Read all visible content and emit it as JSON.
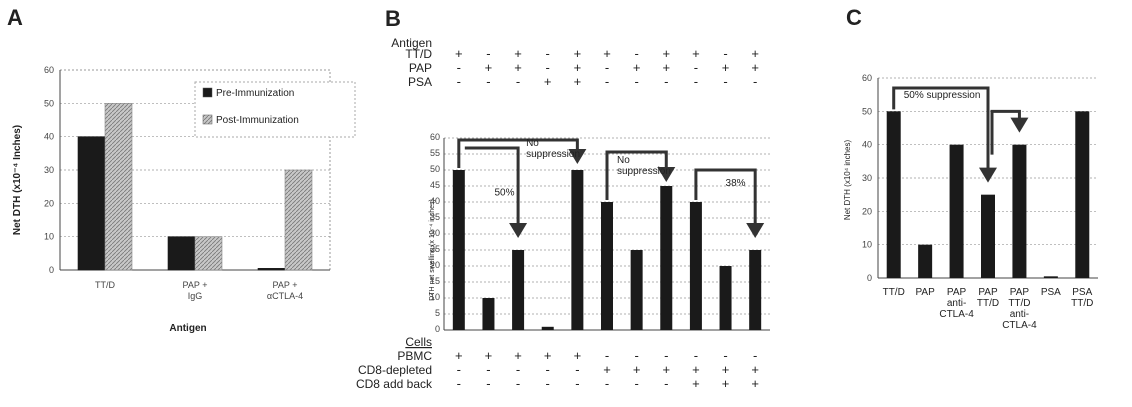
{
  "panels": {
    "a": {
      "letter": "A",
      "ylabel": "Net DTH (x10⁻⁴ Inches)",
      "xlabel": "Antigen"
    },
    "b": {
      "letter": "B",
      "ylabel": "DTH net swelling (x 10⁻⁴ inches)"
    },
    "c": {
      "letter": "C",
      "ylabel": "Net DTH (x10⁴ inches)"
    }
  },
  "colors": {
    "pre": "#1a1a1a",
    "post": "#c8c8c8",
    "bar": "#1a1a1a"
  },
  "chart_data": [
    {
      "type": "bar",
      "title": "",
      "xlabel": "Antigen",
      "ylabel": "Net DTH (x10⁻⁴ Inches)",
      "ylim": [
        0,
        60
      ],
      "yticks": [
        0,
        10,
        20,
        30,
        40,
        50,
        60
      ],
      "grid": true,
      "legend": "top-right",
      "categories": [
        [
          "TT/D"
        ],
        [
          "PAP +",
          "IgG"
        ],
        [
          "PAP +",
          "αCTLA-4"
        ]
      ],
      "series": [
        {
          "name": "Pre-Immunization",
          "values": [
            40,
            10,
            0.5
          ]
        },
        {
          "name": "Post-Immunization",
          "values": [
            50,
            10,
            30
          ]
        }
      ]
    },
    {
      "type": "bar",
      "title": "",
      "ylabel": "DTH net swelling (x 10⁻⁴ inches)",
      "ylim": [
        0,
        60
      ],
      "yticks": [
        0,
        5,
        10,
        15,
        20,
        25,
        30,
        35,
        40,
        45,
        50,
        55,
        60
      ],
      "grid": true,
      "values": [
        50,
        10,
        25,
        1,
        50,
        40,
        25,
        45,
        40,
        20,
        25
      ],
      "antigen_header": "Antigen",
      "antigen_rows": [
        {
          "label": "TT/D",
          "signs": [
            "+",
            "-",
            "+",
            "-",
            "+",
            "+",
            "-",
            "+",
            "+",
            "-",
            "+"
          ]
        },
        {
          "label": "PAP",
          "signs": [
            "-",
            "+",
            "+",
            "-",
            "+",
            "-",
            "+",
            "+",
            "-",
            "+",
            "+"
          ]
        },
        {
          "label": "PSA",
          "signs": [
            "-",
            "-",
            "-",
            "+",
            "+",
            "-",
            "-",
            "-",
            "-",
            "-",
            "-"
          ]
        }
      ],
      "cells_header": "Cells",
      "cell_rows": [
        {
          "label": "PBMC",
          "signs": [
            "+",
            "+",
            "+",
            "+",
            "+",
            "-",
            "-",
            "-",
            "-",
            "-",
            "-"
          ]
        },
        {
          "label": "CD8-depleted",
          "signs": [
            "-",
            "-",
            "-",
            "-",
            "-",
            "+",
            "+",
            "+",
            "+",
            "+",
            "+"
          ]
        },
        {
          "label": "CD8 add back",
          "signs": [
            "-",
            "-",
            "-",
            "-",
            "-",
            "-",
            "-",
            "-",
            "+",
            "+",
            "+"
          ]
        }
      ],
      "annotations": [
        {
          "text": [
            "No",
            "suppression"
          ]
        },
        {
          "text": [
            "50%"
          ]
        },
        {
          "text": [
            "No",
            "suppression"
          ]
        },
        {
          "text": [
            "38%"
          ]
        }
      ]
    },
    {
      "type": "bar",
      "title": "",
      "ylabel": "Net DTH (x10⁴ inches)",
      "ylim": [
        0,
        60
      ],
      "yticks": [
        0,
        10,
        20,
        30,
        40,
        50,
        60
      ],
      "grid": true,
      "categories": [
        [
          "TT/D"
        ],
        [
          "PAP"
        ],
        [
          "PAP",
          "anti-",
          "CTLA-4"
        ],
        [
          "PAP",
          "TT/D"
        ],
        [
          "PAP",
          "TT/D",
          "anti-",
          "CTLA-4"
        ],
        [
          "PSA"
        ],
        [
          "PSA",
          "TT/D"
        ]
      ],
      "values": [
        50,
        10,
        40,
        25,
        40,
        0.5,
        50
      ],
      "annotations": [
        {
          "text": [
            "50% suppression"
          ]
        }
      ]
    }
  ]
}
